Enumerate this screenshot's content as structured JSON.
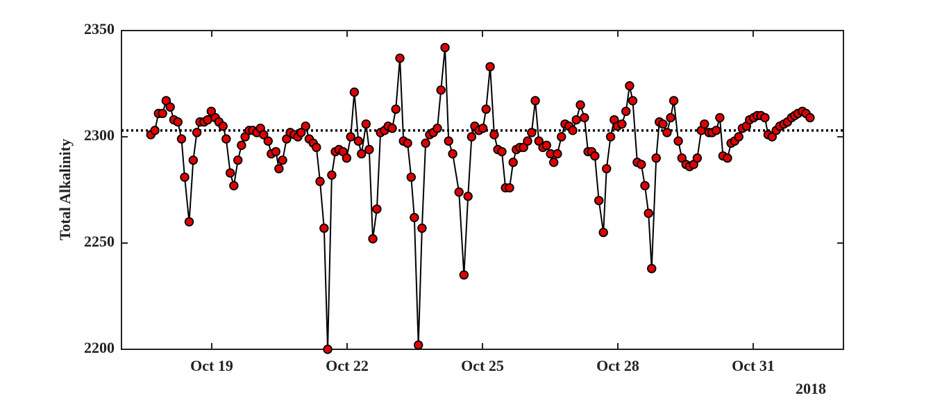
{
  "chart_data": {
    "type": "line",
    "ylabel": "Total Alkalinity",
    "year_label": "2018",
    "xlim": [
      17,
      33
    ],
    "ylim": [
      2200,
      2350
    ],
    "yticks": [
      2200,
      2250,
      2300,
      2350
    ],
    "xticks": [
      {
        "value": 19,
        "label": "Oct 19"
      },
      {
        "value": 22,
        "label": "Oct 22"
      },
      {
        "value": 25,
        "label": "Oct 25"
      },
      {
        "value": 28,
        "label": "Oct 28"
      },
      {
        "value": 31,
        "label": "Oct 31"
      }
    ],
    "reference_line": 2303,
    "line_color": "#000000",
    "marker_color": "#e00000",
    "x": [
      17.65,
      17.74,
      17.82,
      17.91,
      17.99,
      18.08,
      18.16,
      18.25,
      18.33,
      18.4,
      18.5,
      18.59,
      18.67,
      18.74,
      18.83,
      18.91,
      18.99,
      19.08,
      19.16,
      19.25,
      19.32,
      19.41,
      19.49,
      19.58,
      19.66,
      19.74,
      19.83,
      19.91,
      20.0,
      20.08,
      20.15,
      20.25,
      20.32,
      20.42,
      20.49,
      20.57,
      20.66,
      20.74,
      20.83,
      20.91,
      20.98,
      21.08,
      21.16,
      21.25,
      21.32,
      21.4,
      21.49,
      21.57,
      21.66,
      21.74,
      21.82,
      21.91,
      21.99,
      22.08,
      22.16,
      22.25,
      22.32,
      22.42,
      22.49,
      22.57,
      22.66,
      22.74,
      22.83,
      22.91,
      23.0,
      23.08,
      23.17,
      23.25,
      23.34,
      23.42,
      23.49,
      23.58,
      23.66,
      23.74,
      23.83,
      23.91,
      24.0,
      24.08,
      24.17,
      24.25,
      24.34,
      24.48,
      24.59,
      24.68,
      24.76,
      24.83,
      24.92,
      25.01,
      25.08,
      25.17,
      25.26,
      25.34,
      25.43,
      25.51,
      25.6,
      25.68,
      25.75,
      25.83,
      25.91,
      26.0,
      26.09,
      26.17,
      26.25,
      26.34,
      26.42,
      26.51,
      26.58,
      26.66,
      26.75,
      26.83,
      26.92,
      27.0,
      27.08,
      27.17,
      27.26,
      27.34,
      27.42,
      27.49,
      27.58,
      27.68,
      27.75,
      27.84,
      27.92,
      27.99,
      28.09,
      28.18,
      28.26,
      28.33,
      28.43,
      28.52,
      28.6,
      28.68,
      28.75,
      28.85,
      28.92,
      29.0,
      29.09,
      29.17,
      29.24,
      29.34,
      29.42,
      29.51,
      29.59,
      29.68,
      29.76,
      29.85,
      29.92,
      30.02,
      30.09,
      30.18,
      30.26,
      30.33,
      30.43,
      30.51,
      30.59,
      30.68,
      30.76,
      30.85,
      30.92,
      31.01,
      31.09,
      31.17,
      31.26,
      31.33,
      31.42,
      31.51,
      31.59,
      31.68,
      31.76,
      31.85,
      31.92,
      31.99,
      32.09,
      32.17,
      32.26
    ],
    "values": [
      2301,
      2303,
      2311,
      2311,
      2317,
      2314,
      2308,
      2307,
      2299,
      2281,
      2260,
      2289,
      2302,
      2307,
      2307,
      2308,
      2312,
      2309,
      2307,
      2305,
      2299,
      2283,
      2277,
      2289,
      2296,
      2300,
      2303,
      2303,
      2302,
      2304,
      2301,
      2298,
      2292,
      2293,
      2285,
      2289,
      2299,
      2302,
      2301,
      2300,
      2302,
      2305,
      2299,
      2297,
      2295,
      2279,
      2257,
      2200,
      2282,
      2293,
      2294,
      2293,
      2290,
      2300,
      2321,
      2298,
      2292,
      2306,
      2294,
      2252,
      2266,
      2302,
      2303,
      2305,
      2304,
      2313,
      2337,
      2298,
      2297,
      2281,
      2262,
      2202,
      2257,
      2297,
      2301,
      2302,
      2304,
      2322,
      2342,
      2298,
      2292,
      2274,
      2235,
      2272,
      2300,
      2305,
      2303,
      2304,
      2313,
      2333,
      2301,
      2294,
      2293,
      2276,
      2276,
      2288,
      2294,
      2295,
      2295,
      2298,
      2302,
      2317,
      2298,
      2295,
      2296,
      2292,
      2288,
      2292,
      2300,
      2306,
      2305,
      2303,
      2308,
      2315,
      2309,
      2293,
      2293,
      2291,
      2270,
      2255,
      2285,
      2300,
      2308,
      2305,
      2306,
      2312,
      2324,
      2317,
      2288,
      2287,
      2277,
      2264,
      2238,
      2290,
      2307,
      2306,
      2302,
      2309,
      2317,
      2298,
      2290,
      2287,
      2286,
      2287,
      2290,
      2303,
      2306,
      2302,
      2302,
      2303,
      2309,
      2291,
      2290,
      2297,
      2298,
      2300,
      2304,
      2305,
      2308,
      2309,
      2310,
      2310,
      2309,
      2301,
      2300,
      2303,
      2305,
      2306,
      2307,
      2309,
      2310,
      2311,
      2312,
      2311,
      2309
    ]
  }
}
